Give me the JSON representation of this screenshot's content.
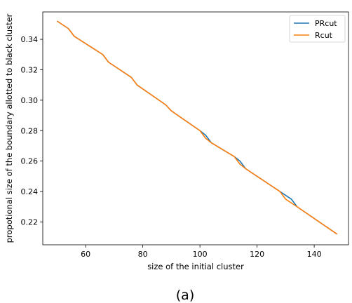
{
  "chart_data": {
    "type": "line",
    "xlabel": "size of the initial cluster",
    "ylabel": "propotional size of the boundary allotted to black cluster",
    "xlim": [
      45,
      152
    ],
    "ylim": [
      0.205,
      0.358
    ],
    "xticks": [
      60,
      80,
      100,
      120,
      140
    ],
    "yticks": [
      0.22,
      0.24,
      0.26,
      0.28,
      0.3,
      0.32,
      0.34
    ],
    "xtick_labels": [
      "60",
      "80",
      "100",
      "120",
      "140"
    ],
    "ytick_labels": [
      "0.22",
      "0.24",
      "0.26",
      "0.28",
      "0.30",
      "0.32",
      "0.34"
    ],
    "legend_position": "top-right",
    "grid": false,
    "series": [
      {
        "name": "PRcut",
        "color": "#1f77b4",
        "x": [
          50,
          54,
          56,
          66,
          68,
          76,
          78,
          88,
          90,
          100,
          102,
          104,
          112,
          114,
          116,
          128,
          132,
          134,
          148
        ],
        "y": [
          0.352,
          0.347,
          0.342,
          0.33,
          0.325,
          0.315,
          0.31,
          0.297,
          0.293,
          0.28,
          0.277,
          0.272,
          0.263,
          0.26,
          0.255,
          0.24,
          0.235,
          0.23,
          0.212
        ]
      },
      {
        "name": "Rcut",
        "color": "#ff7f0e",
        "x": [
          50,
          54,
          56,
          66,
          68,
          76,
          78,
          88,
          90,
          100,
          102,
          104,
          112,
          114,
          116,
          128,
          130,
          134,
          148
        ],
        "y": [
          0.352,
          0.347,
          0.342,
          0.33,
          0.325,
          0.315,
          0.31,
          0.297,
          0.293,
          0.28,
          0.275,
          0.272,
          0.263,
          0.258,
          0.255,
          0.24,
          0.235,
          0.23,
          0.212
        ]
      }
    ]
  },
  "caption": "(a)"
}
